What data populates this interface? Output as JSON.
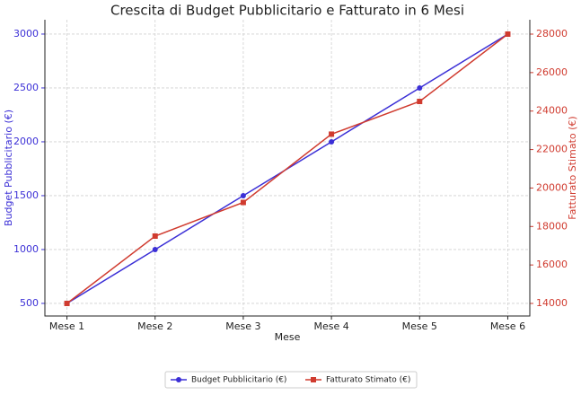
{
  "chart_data": {
    "type": "line",
    "title": "Crescita di Budget Pubblicitario e Fatturato in 6 Mesi",
    "x_label": "Mese",
    "y_label": "Budget Pubblicitario (€)",
    "y2_label": "Fatturato Stimato (€)",
    "categories": [
      "Mese 1",
      "Mese 2",
      "Mese 3",
      "Mese 4",
      "Mese 5",
      "Mese 6"
    ],
    "series": [
      {
        "name": "Budget Pubblicitario (€)",
        "color": "#3b2fd6",
        "marker": "circle",
        "values": [
          500,
          1000,
          1500,
          2000,
          2500,
          3000
        ]
      },
      {
        "name": "Fatturato Stimato (€)",
        "color": "#d03b2f",
        "marker": "square",
        "axis": "y2",
        "values": [
          14000,
          17500,
          19250,
          22800,
          24500,
          28000
        ]
      }
    ],
    "ylim": [
      383,
      3133
    ],
    "yticks": [
      500,
      1000,
      1500,
      2000,
      2500,
      3000
    ],
    "y2lim": [
      13347,
      28747
    ],
    "y2ticks": [
      14000,
      16000,
      18000,
      20000,
      22000,
      24000,
      26000,
      28000
    ],
    "grid": true,
    "legend": "bottom"
  }
}
